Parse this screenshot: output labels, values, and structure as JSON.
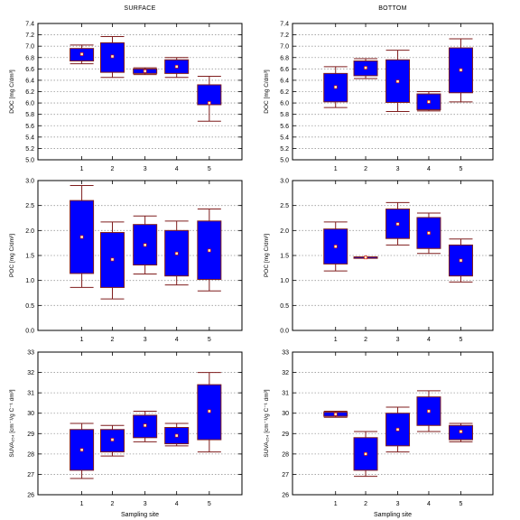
{
  "colors": {
    "box_fill": "#0000ff",
    "box_stroke": "#7f1d1d",
    "whisker": "#7f1d1d",
    "median_fill": "#fff8c0",
    "median_stroke": "#cc0000",
    "grid": "#9a9a9a"
  },
  "chart_data": [
    {
      "type": "box",
      "title": "SURFACE",
      "xlabel": "",
      "ylabel": "DOC [mg C/dm³]",
      "ylim": [
        5.0,
        7.4
      ],
      "yticks": [
        "5.0",
        "5.2",
        "5.4",
        "5.6",
        "5.8",
        "6.0",
        "6.2",
        "6.4",
        "6.6",
        "6.8",
        "7.0",
        "7.2",
        "7.4"
      ],
      "ytick_values": [
        5.0,
        5.2,
        5.4,
        5.6,
        5.8,
        6.0,
        6.2,
        6.4,
        6.6,
        6.8,
        7.0,
        7.2,
        7.4
      ],
      "categories": [
        "1",
        "2",
        "3",
        "4",
        "5"
      ],
      "grid": "horizontal dotted",
      "boxes": [
        {
          "site": "1",
          "min": 6.69,
          "q1": 6.74,
          "median": 6.86,
          "q3": 6.96,
          "max": 7.02
        },
        {
          "site": "2",
          "min": 6.45,
          "q1": 6.54,
          "median": 6.82,
          "q3": 7.06,
          "max": 7.17
        },
        {
          "site": "3",
          "min": 6.5,
          "q1": 6.52,
          "median": 6.56,
          "q3": 6.6,
          "max": 6.62
        },
        {
          "site": "4",
          "min": 6.45,
          "q1": 6.52,
          "median": 6.64,
          "q3": 6.76,
          "max": 6.8
        },
        {
          "site": "5",
          "min": 5.68,
          "q1": 5.97,
          "median": 6.0,
          "q3": 6.32,
          "max": 6.47
        }
      ]
    },
    {
      "type": "box",
      "title": "BOTTOM",
      "xlabel": "",
      "ylabel": "DOC [mg C/dm³]",
      "ylim": [
        5.0,
        7.4
      ],
      "yticks": [
        "5.0",
        "5.2",
        "5.4",
        "5.6",
        "5.8",
        "6.0",
        "6.2",
        "6.4",
        "6.6",
        "6.8",
        "7.0",
        "7.2",
        "7.4"
      ],
      "ytick_values": [
        5.0,
        5.2,
        5.4,
        5.6,
        5.8,
        6.0,
        6.2,
        6.4,
        6.6,
        6.8,
        7.0,
        7.2,
        7.4
      ],
      "categories": [
        "1",
        "2",
        "3",
        "4",
        "5"
      ],
      "grid": "horizontal dotted",
      "boxes": [
        {
          "site": "1",
          "min": 5.92,
          "q1": 6.02,
          "median": 6.28,
          "q3": 6.52,
          "max": 6.64
        },
        {
          "site": "2",
          "min": 6.43,
          "q1": 6.48,
          "median": 6.62,
          "q3": 6.74,
          "max": 6.78
        },
        {
          "site": "3",
          "min": 5.85,
          "q1": 6.01,
          "median": 6.38,
          "q3": 6.76,
          "max": 6.93
        },
        {
          "site": "4",
          "min": 5.86,
          "q1": 5.88,
          "median": 6.02,
          "q3": 6.16,
          "max": 6.2
        },
        {
          "site": "5",
          "min": 6.02,
          "q1": 6.18,
          "median": 6.58,
          "q3": 6.97,
          "max": 7.13
        }
      ]
    },
    {
      "type": "box",
      "title": "",
      "xlabel": "",
      "ylabel": "POC [mg C/dm³]",
      "ylim": [
        0.0,
        3.0
      ],
      "yticks": [
        "0.0",
        "0.5",
        "1.0",
        "1.5",
        "2.0",
        "2.5",
        "3.0"
      ],
      "ytick_values": [
        0.0,
        0.5,
        1.0,
        1.5,
        2.0,
        2.5,
        3.0
      ],
      "categories": [
        "1",
        "2",
        "3",
        "4",
        "5"
      ],
      "grid": "horizontal dotted",
      "boxes": [
        {
          "site": "1",
          "min": 0.86,
          "q1": 1.14,
          "median": 1.87,
          "q3": 2.6,
          "max": 2.9
        },
        {
          "site": "2",
          "min": 0.63,
          "q1": 0.86,
          "median": 1.42,
          "q3": 1.96,
          "max": 2.17
        },
        {
          "site": "3",
          "min": 1.13,
          "q1": 1.31,
          "median": 1.71,
          "q3": 2.12,
          "max": 2.29
        },
        {
          "site": "4",
          "min": 0.91,
          "q1": 1.09,
          "median": 1.54,
          "q3": 2.0,
          "max": 2.19
        },
        {
          "site": "5",
          "min": 0.79,
          "q1": 1.02,
          "median": 1.6,
          "q3": 2.19,
          "max": 2.43
        }
      ]
    },
    {
      "type": "box",
      "title": "",
      "xlabel": "",
      "ylabel": "POC [mg C/dm³]",
      "ylim": [
        0.0,
        3.0
      ],
      "yticks": [
        "0.0",
        "0.5",
        "1.0",
        "1.5",
        "2.0",
        "2.5",
        "3.0"
      ],
      "ytick_values": [
        0.0,
        0.5,
        1.0,
        1.5,
        2.0,
        2.5,
        3.0
      ],
      "categories": [
        "1",
        "2",
        "3",
        "4",
        "5"
      ],
      "grid": "horizontal dotted",
      "boxes": [
        {
          "site": "1",
          "min": 1.19,
          "q1": 1.33,
          "median": 1.68,
          "q3": 2.03,
          "max": 2.17
        },
        {
          "site": "2",
          "min": 1.45,
          "q1": 1.45,
          "median": 1.46,
          "q3": 1.47,
          "max": 1.47
        },
        {
          "site": "3",
          "min": 1.71,
          "q1": 1.84,
          "median": 2.13,
          "q3": 2.43,
          "max": 2.56
        },
        {
          "site": "4",
          "min": 1.54,
          "q1": 1.64,
          "median": 1.95,
          "q3": 2.26,
          "max": 2.35
        },
        {
          "site": "5",
          "min": 0.97,
          "q1": 1.09,
          "median": 1.4,
          "q3": 1.71,
          "max": 1.83
        }
      ]
    },
    {
      "type": "box",
      "title": "",
      "xlabel": "Sampling site",
      "ylabel": "SUVA₂₅₄ [cm⁻¹/g C⁻¹ dm³]",
      "ylim": [
        26,
        33
      ],
      "yticks": [
        "26",
        "27",
        "28",
        "29",
        "30",
        "31",
        "32",
        "33"
      ],
      "ytick_values": [
        26,
        27,
        28,
        29,
        30,
        31,
        32,
        33
      ],
      "categories": [
        "1",
        "2",
        "3",
        "4",
        "5"
      ],
      "grid": "horizontal dotted",
      "boxes": [
        {
          "site": "1",
          "min": 26.8,
          "q1": 27.2,
          "median": 28.2,
          "q3": 29.2,
          "max": 29.5
        },
        {
          "site": "2",
          "min": 27.9,
          "q1": 28.1,
          "median": 28.7,
          "q3": 29.2,
          "max": 29.4
        },
        {
          "site": "3",
          "min": 28.6,
          "q1": 28.8,
          "median": 29.4,
          "q3": 29.9,
          "max": 30.1
        },
        {
          "site": "4",
          "min": 28.4,
          "q1": 28.5,
          "median": 28.9,
          "q3": 29.3,
          "max": 29.5
        },
        {
          "site": "5",
          "min": 28.1,
          "q1": 28.7,
          "median": 30.1,
          "q3": 31.4,
          "max": 32.0
        }
      ]
    },
    {
      "type": "box",
      "title": "",
      "xlabel": "Sampling site",
      "ylabel": "SUVA₂₅₄ [cm⁻¹/g C⁻¹ dm³]",
      "ylim": [
        26,
        33
      ],
      "yticks": [
        "26",
        "27",
        "28",
        "29",
        "30",
        "31",
        "32",
        "33"
      ],
      "ytick_values": [
        26,
        27,
        28,
        29,
        30,
        31,
        32,
        33
      ],
      "categories": [
        "1",
        "2",
        "3",
        "4",
        "5"
      ],
      "grid": "horizontal dotted",
      "boxes": [
        {
          "site": "1",
          "min": 29.8,
          "q1": 29.85,
          "median": 29.95,
          "q3": 30.05,
          "max": 30.1
        },
        {
          "site": "2",
          "min": 26.9,
          "q1": 27.2,
          "median": 28.0,
          "q3": 28.8,
          "max": 29.1
        },
        {
          "site": "3",
          "min": 28.1,
          "q1": 28.4,
          "median": 29.2,
          "q3": 30.0,
          "max": 30.3
        },
        {
          "site": "4",
          "min": 29.1,
          "q1": 29.4,
          "median": 30.1,
          "q3": 30.8,
          "max": 31.1
        },
        {
          "site": "5",
          "min": 28.6,
          "q1": 28.7,
          "median": 29.1,
          "q3": 29.4,
          "max": 29.5
        }
      ]
    }
  ]
}
